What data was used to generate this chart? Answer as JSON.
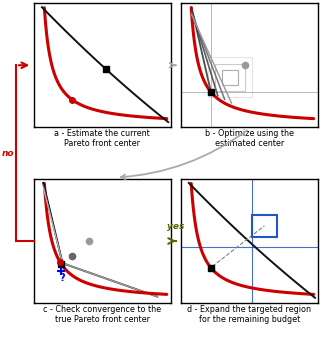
{
  "panel_a_label": "a - Estimate the current\nPareto front center",
  "panel_b_label": "b - Optimize using the\nestimated center",
  "panel_c_label": "c - Check convergence to the\ntrue Pareto front center",
  "panel_d_label": "d - Expand the targeted region\nfor the remaining budget",
  "red_color": "#cc0000",
  "black_color": "#111111",
  "gray1": "#333333",
  "gray2": "#666666",
  "gray3": "#999999",
  "gray4": "#bbbbbb",
  "blue_color": "#2255cc",
  "arrow_gray": "#aaaaaa",
  "yes_color": "#556600",
  "no_color": "#cc0000"
}
